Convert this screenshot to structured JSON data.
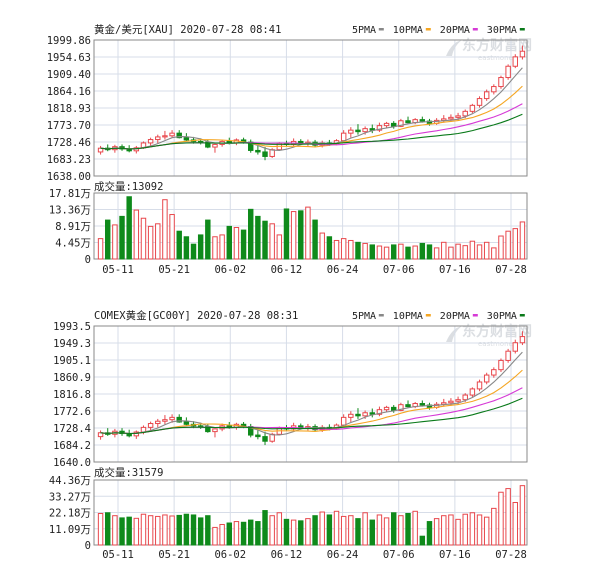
{
  "watermark": {
    "brand": "东方财富网",
    "brand_en": "eastmoney"
  },
  "colors": {
    "up": "#e8474c",
    "down": "#0f8a1b",
    "ma5": "#888888",
    "ma10": "#f5a623",
    "ma20": "#d63ad6",
    "ma30": "#0a7a1a",
    "grid": "#d7dde8",
    "frame": "#8a8a8a"
  },
  "x_ticks": [
    "05-11",
    "05-21",
    "06-02",
    "06-12",
    "06-24",
    "07-06",
    "07-16",
    "07-28"
  ],
  "ma_legend": [
    {
      "label": "5PMA",
      "color": "#888888"
    },
    {
      "label": "10PMA",
      "color": "#f5a623"
    },
    {
      "label": "20PMA",
      "color": "#d63ad6"
    },
    {
      "label": "30PMA",
      "color": "#0a7a1a"
    }
  ],
  "chart_data": [
    {
      "type": "candlestick",
      "title": "黄金/美元[XAU] 2020-07-28 08:41",
      "y_ticks": [
        "1999.86",
        "1954.63",
        "1909.40",
        "1864.16",
        "1818.93",
        "1773.70",
        "1728.46",
        "1683.23",
        "1638.00"
      ],
      "ylim": [
        1638.0,
        1999.86
      ],
      "candles": [
        [
          1702,
          1718,
          1695,
          1712
        ],
        [
          1712,
          1722,
          1704,
          1708
        ],
        [
          1708,
          1721,
          1700,
          1716
        ],
        [
          1716,
          1722,
          1705,
          1710
        ],
        [
          1710,
          1720,
          1701,
          1705
        ],
        [
          1705,
          1718,
          1698,
          1713
        ],
        [
          1713,
          1730,
          1710,
          1726
        ],
        [
          1726,
          1740,
          1718,
          1735
        ],
        [
          1735,
          1748,
          1725,
          1742
        ],
        [
          1742,
          1758,
          1735,
          1745
        ],
        [
          1745,
          1760,
          1740,
          1752
        ],
        [
          1752,
          1760,
          1738,
          1740
        ],
        [
          1740,
          1752,
          1730,
          1734
        ],
        [
          1734,
          1742,
          1724,
          1730
        ],
        [
          1730,
          1738,
          1722,
          1728
        ],
        [
          1728,
          1735,
          1712,
          1715
        ],
        [
          1715,
          1724,
          1700,
          1722
        ],
        [
          1722,
          1735,
          1716,
          1730
        ],
        [
          1730,
          1740,
          1722,
          1726
        ],
        [
          1726,
          1738,
          1720,
          1734
        ],
        [
          1734,
          1740,
          1724,
          1728
        ],
        [
          1728,
          1735,
          1700,
          1706
        ],
        [
          1706,
          1718,
          1695,
          1702
        ],
        [
          1702,
          1715,
          1680,
          1690
        ],
        [
          1690,
          1712,
          1686,
          1708
        ],
        [
          1708,
          1728,
          1705,
          1725
        ],
        [
          1725,
          1732,
          1718,
          1722
        ],
        [
          1722,
          1738,
          1716,
          1730
        ],
        [
          1730,
          1736,
          1720,
          1724
        ],
        [
          1724,
          1735,
          1718,
          1728
        ],
        [
          1728,
          1734,
          1715,
          1720
        ],
        [
          1720,
          1732,
          1714,
          1726
        ],
        [
          1726,
          1734,
          1718,
          1724
        ],
        [
          1724,
          1736,
          1720,
          1732
        ],
        [
          1732,
          1760,
          1728,
          1752
        ],
        [
          1752,
          1768,
          1740,
          1760
        ],
        [
          1760,
          1776,
          1748,
          1756
        ],
        [
          1756,
          1770,
          1748,
          1764
        ],
        [
          1764,
          1775,
          1752,
          1760
        ],
        [
          1760,
          1780,
          1755,
          1772
        ],
        [
          1772,
          1782,
          1765,
          1778
        ],
        [
          1778,
          1784,
          1764,
          1770
        ],
        [
          1770,
          1790,
          1768,
          1785
        ],
        [
          1785,
          1796,
          1778,
          1780
        ],
        [
          1780,
          1792,
          1776,
          1788
        ],
        [
          1788,
          1796,
          1780,
          1784
        ],
        [
          1784,
          1790,
          1772,
          1778
        ],
        [
          1778,
          1792,
          1774,
          1786
        ],
        [
          1786,
          1800,
          1780,
          1790
        ],
        [
          1790,
          1802,
          1782,
          1794
        ],
        [
          1794,
          1806,
          1786,
          1798
        ],
        [
          1798,
          1815,
          1792,
          1810
        ],
        [
          1810,
          1830,
          1805,
          1826
        ],
        [
          1826,
          1850,
          1820,
          1844
        ],
        [
          1844,
          1868,
          1838,
          1862
        ],
        [
          1862,
          1882,
          1855,
          1876
        ],
        [
          1876,
          1905,
          1870,
          1900
        ],
        [
          1900,
          1935,
          1894,
          1930
        ],
        [
          1930,
          1962,
          1925,
          1955
        ],
        [
          1955,
          1985,
          1948,
          1970
        ]
      ],
      "volume": {
        "label": "成交量:13092",
        "y_ticks": [
          "17.81万",
          "13.36万",
          "8.91万",
          "4.45万",
          "0"
        ],
        "ylim": [
          0,
          17.81
        ],
        "values": [
          5.5,
          10.5,
          9.2,
          11.5,
          16.8,
          13.2,
          11.0,
          8.8,
          9.5,
          16.0,
          12.0,
          7.5,
          6.0,
          4.0,
          6.5,
          10.5,
          6.0,
          6.5,
          8.8,
          8.5,
          7.8,
          13.4,
          11.5,
          10.2,
          9.5,
          6.5,
          13.5,
          12.8,
          13.0,
          14.0,
          10.5,
          7.0,
          6.0,
          5.0,
          5.5,
          5.0,
          4.5,
          4.2,
          3.8,
          3.5,
          3.2,
          3.8,
          4.0,
          3.2,
          3.5,
          4.2,
          3.8,
          3.0,
          4.5,
          3.2,
          4.0,
          3.6,
          4.8,
          3.8,
          4.5,
          3.0,
          6.2,
          7.5,
          8.2,
          10.0
        ]
      }
    },
    {
      "type": "candlestick",
      "title": "COMEX黄金[GC00Y] 2020-07-28 08:31",
      "y_ticks": [
        "1993.5",
        "1949.3",
        "1905.1",
        "1860.9",
        "1816.8",
        "1772.6",
        "1728.4",
        "1684.2",
        "1640.0"
      ],
      "ylim": [
        1640.0,
        1993.5
      ],
      "candles": [
        [
          1706,
          1722,
          1698,
          1716
        ],
        [
          1716,
          1728,
          1708,
          1712
        ],
        [
          1712,
          1726,
          1704,
          1720
        ],
        [
          1720,
          1728,
          1708,
          1714
        ],
        [
          1714,
          1724,
          1704,
          1708
        ],
        [
          1708,
          1722,
          1700,
          1718
        ],
        [
          1718,
          1735,
          1712,
          1730
        ],
        [
          1730,
          1745,
          1722,
          1740
        ],
        [
          1740,
          1752,
          1730,
          1746
        ],
        [
          1746,
          1762,
          1738,
          1750
        ],
        [
          1750,
          1764,
          1742,
          1756
        ],
        [
          1756,
          1764,
          1742,
          1744
        ],
        [
          1744,
          1756,
          1734,
          1738
        ],
        [
          1738,
          1746,
          1728,
          1734
        ],
        [
          1734,
          1742,
          1726,
          1732
        ],
        [
          1732,
          1739,
          1716,
          1719
        ],
        [
          1719,
          1728,
          1704,
          1726
        ],
        [
          1726,
          1740,
          1720,
          1734
        ],
        [
          1734,
          1744,
          1726,
          1730
        ],
        [
          1730,
          1742,
          1724,
          1738
        ],
        [
          1738,
          1744,
          1728,
          1732
        ],
        [
          1732,
          1739,
          1704,
          1710
        ],
        [
          1710,
          1722,
          1699,
          1706
        ],
        [
          1706,
          1719,
          1684,
          1694
        ],
        [
          1694,
          1716,
          1690,
          1712
        ],
        [
          1712,
          1732,
          1709,
          1729
        ],
        [
          1729,
          1736,
          1722,
          1726
        ],
        [
          1726,
          1742,
          1720,
          1734
        ],
        [
          1734,
          1740,
          1724,
          1728
        ],
        [
          1728,
          1739,
          1722,
          1732
        ],
        [
          1732,
          1738,
          1719,
          1724
        ],
        [
          1724,
          1736,
          1718,
          1730
        ],
        [
          1730,
          1738,
          1722,
          1728
        ],
        [
          1728,
          1740,
          1724,
          1736
        ],
        [
          1736,
          1764,
          1732,
          1756
        ],
        [
          1756,
          1772,
          1744,
          1764
        ],
        [
          1764,
          1780,
          1752,
          1760
        ],
        [
          1760,
          1774,
          1752,
          1768
        ],
        [
          1768,
          1779,
          1756,
          1764
        ],
        [
          1764,
          1784,
          1759,
          1776
        ],
        [
          1776,
          1786,
          1769,
          1782
        ],
        [
          1782,
          1788,
          1768,
          1774
        ],
        [
          1774,
          1794,
          1772,
          1789
        ],
        [
          1789,
          1800,
          1782,
          1784
        ],
        [
          1784,
          1796,
          1780,
          1792
        ],
        [
          1792,
          1800,
          1784,
          1788
        ],
        [
          1788,
          1794,
          1776,
          1782
        ],
        [
          1782,
          1796,
          1778,
          1790
        ],
        [
          1790,
          1804,
          1784,
          1794
        ],
        [
          1794,
          1806,
          1786,
          1798
        ],
        [
          1798,
          1810,
          1790,
          1802
        ],
        [
          1802,
          1819,
          1796,
          1814
        ],
        [
          1814,
          1834,
          1809,
          1830
        ],
        [
          1830,
          1854,
          1824,
          1848
        ],
        [
          1848,
          1872,
          1842,
          1866
        ],
        [
          1866,
          1886,
          1859,
          1880
        ],
        [
          1880,
          1909,
          1874,
          1904
        ],
        [
          1904,
          1934,
          1898,
          1928
        ],
        [
          1928,
          1958,
          1922,
          1950
        ],
        [
          1950,
          1980,
          1944,
          1966
        ]
      ],
      "volume": {
        "label": "成交量:31579",
        "y_ticks": [
          "44.36万",
          "33.27万",
          "22.18万",
          "11.09万",
          "0"
        ],
        "ylim": [
          0,
          44.36
        ],
        "values": [
          21.5,
          22.0,
          20.0,
          18.5,
          19.0,
          18.2,
          21.0,
          20.0,
          19.5,
          20.5,
          19.8,
          20.2,
          21.0,
          20.5,
          18.5,
          20.0,
          12.0,
          14.0,
          15.0,
          16.0,
          15.5,
          17.0,
          16.0,
          23.5,
          20.0,
          22.0,
          17.5,
          17.0,
          16.5,
          18.0,
          20.0,
          22.5,
          20.5,
          23.0,
          19.5,
          20.0,
          18.0,
          22.0,
          17.0,
          20.5,
          18.5,
          22.0,
          20.0,
          21.5,
          23.0,
          6.0,
          16.0,
          18.0,
          20.0,
          20.5,
          17.5,
          21.0,
          22.0,
          20.5,
          19.0,
          25.0,
          36.0,
          38.5,
          29.0,
          40.5
        ]
      }
    }
  ]
}
